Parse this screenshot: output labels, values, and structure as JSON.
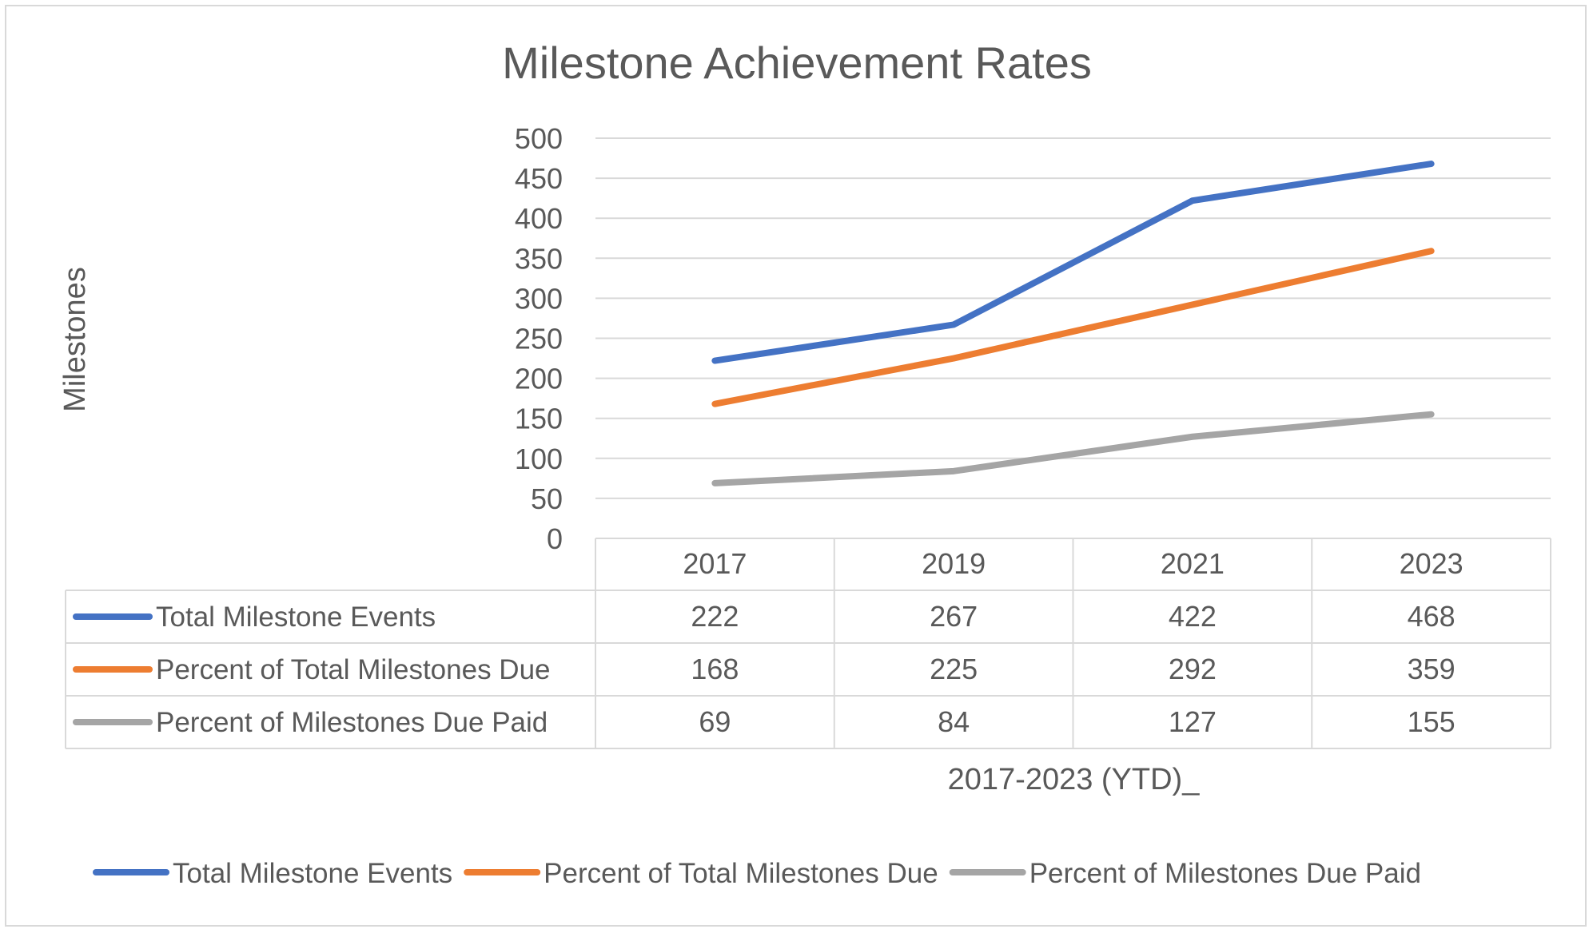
{
  "chart_data": {
    "type": "line",
    "title": "Milestone Achievement Rates",
    "ylabel": "Milestones",
    "xlabel": "2017-2023 (YTD)_",
    "ylim": [
      0,
      500
    ],
    "yticks": [
      0,
      50,
      100,
      150,
      200,
      250,
      300,
      350,
      400,
      450,
      500
    ],
    "categories": [
      "2017",
      "2019",
      "2021",
      "2023"
    ],
    "grid": true,
    "legend_position": "bottom",
    "data_table": true,
    "series": [
      {
        "name": "Total Milestone Events",
        "color": "#4472C4",
        "values": [
          222,
          267,
          422,
          468
        ]
      },
      {
        "name": "Percent of Total Milestones Due",
        "color": "#ED7D31",
        "values": [
          168,
          225,
          292,
          359
        ]
      },
      {
        "name": "Percent of Milestones Due Paid",
        "color": "#A5A5A5",
        "values": [
          69,
          84,
          127,
          155
        ]
      }
    ]
  }
}
